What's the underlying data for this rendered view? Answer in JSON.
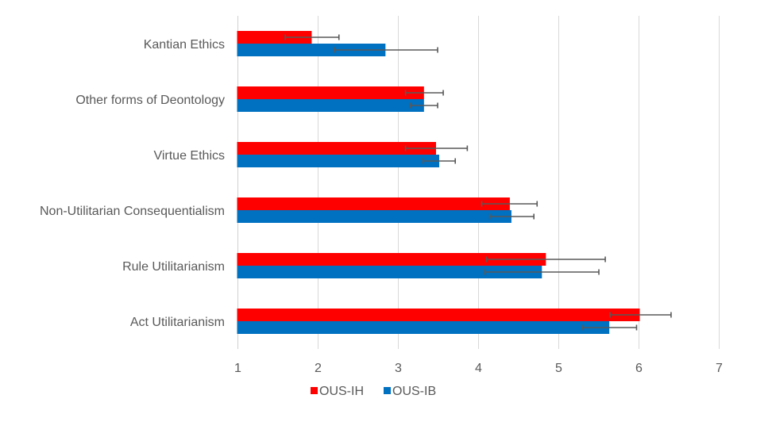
{
  "chart_data": {
    "type": "bar",
    "orientation": "horizontal",
    "title": "",
    "xlabel": "",
    "ylabel": "",
    "xlim": [
      1,
      7
    ],
    "xticks": [
      1,
      2,
      3,
      4,
      5,
      6,
      7
    ],
    "grid": true,
    "legend_position": "bottom",
    "categories": [
      "Kantian Ethics",
      "Other forms of Deontology",
      "Virtue Ethics",
      "Non-Utilitarian Consequentialism",
      "Rule Utilitarianism",
      "Act Utilitarianism"
    ],
    "series": [
      {
        "name": "OUS-IH",
        "color": "#ff0000",
        "values": [
          1.93,
          3.33,
          3.48,
          4.4,
          4.85,
          6.02
        ],
        "error_low": [
          1.6,
          3.1,
          3.1,
          4.05,
          4.11,
          5.65
        ],
        "error_high": [
          2.27,
          3.57,
          3.87,
          4.74,
          5.59,
          6.41
        ]
      },
      {
        "name": "OUS-IB",
        "color": "#0070c0",
        "values": [
          2.85,
          3.33,
          3.52,
          4.42,
          4.8,
          5.64
        ],
        "error_low": [
          2.21,
          3.16,
          3.32,
          4.15,
          4.09,
          5.3
        ],
        "error_high": [
          3.5,
          3.5,
          3.72,
          4.7,
          5.51,
          5.98
        ]
      }
    ]
  }
}
